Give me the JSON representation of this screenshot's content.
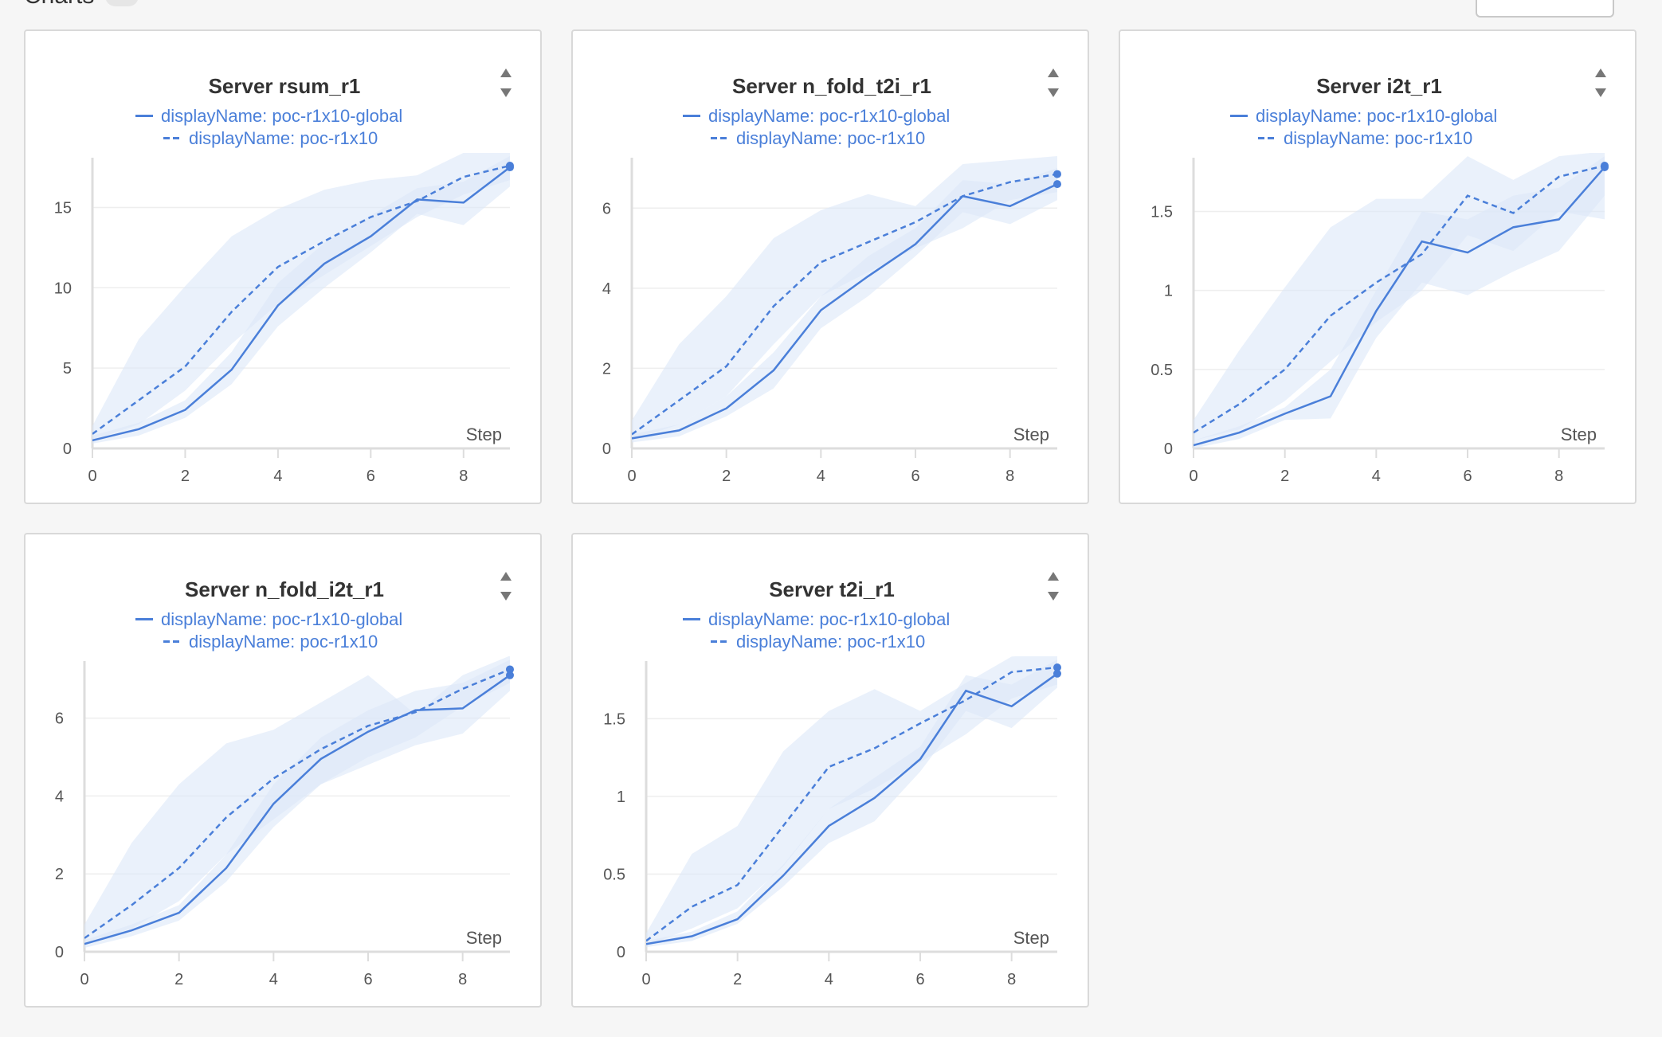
{
  "header": {
    "section_title": "Charts"
  },
  "legend_labels": [
    "displayName: poc-r1x10-global",
    "displayName: poc-r1x10"
  ],
  "colors": {
    "series": "#4a7fd9",
    "band": "#dce7f9",
    "grid": "#eeeeee",
    "axis": "#dddddd"
  },
  "chart_data": [
    {
      "type": "line",
      "title": "Server rsum_r1",
      "xlabel": "Step",
      "ylabel": "",
      "x": [
        0,
        1,
        2,
        3,
        4,
        5,
        6,
        7,
        8,
        9
      ],
      "xlim": [
        0,
        9
      ],
      "ylim": [
        0,
        17.7
      ],
      "xticks": [
        0,
        2,
        4,
        6,
        8
      ],
      "yticks": [
        0,
        5,
        10,
        15
      ],
      "ytick_labels": [
        "0",
        "5",
        "10",
        "15"
      ],
      "series": [
        {
          "name": "displayName: poc-r1x10-global",
          "style": "solid",
          "values": [
            0.5,
            1.2,
            2.4,
            4.9,
            8.9,
            11.5,
            13.2,
            15.5,
            15.3,
            17.5
          ],
          "band_low": [
            0.3,
            0.8,
            1.9,
            4.0,
            7.6,
            10.0,
            12.2,
            14.6,
            13.9,
            16.3
          ],
          "band_high": [
            0.8,
            1.6,
            3.0,
            6.0,
            10.3,
            12.8,
            14.5,
            16.2,
            16.6,
            18.2
          ]
        },
        {
          "name": "displayName: poc-r1x10",
          "style": "dashed",
          "values": [
            0.9,
            3.0,
            5.1,
            8.5,
            11.3,
            12.9,
            14.4,
            15.4,
            16.9,
            17.6
          ],
          "band_low": [
            0.5,
            1.5,
            3.6,
            6.5,
            9.0,
            10.8,
            12.6,
            14.4,
            15.8,
            16.7
          ],
          "band_high": [
            1.4,
            6.8,
            10.1,
            13.2,
            14.9,
            16.1,
            16.7,
            17.0,
            18.4,
            18.5
          ]
        }
      ]
    },
    {
      "type": "line",
      "title": "Server n_fold_t2i_r1",
      "xlabel": "Step",
      "ylabel": "",
      "x": [
        0,
        1,
        2,
        3,
        4,
        5,
        6,
        7,
        8,
        9
      ],
      "xlim": [
        0,
        9
      ],
      "ylim": [
        0,
        7.1
      ],
      "xticks": [
        0,
        2,
        4,
        6,
        8
      ],
      "yticks": [
        0,
        2,
        4,
        6
      ],
      "ytick_labels": [
        "0",
        "2",
        "4",
        "6"
      ],
      "series": [
        {
          "name": "displayName: poc-r1x10-global",
          "style": "solid",
          "values": [
            0.25,
            0.45,
            1.0,
            1.95,
            3.45,
            4.3,
            5.1,
            6.3,
            6.05,
            6.6
          ],
          "band_low": [
            0.15,
            0.3,
            0.8,
            1.5,
            3.0,
            3.8,
            4.8,
            5.9,
            5.6,
            6.2
          ],
          "band_high": [
            0.35,
            0.6,
            1.3,
            2.4,
            3.8,
            4.8,
            5.5,
            6.7,
            6.6,
            7.0
          ]
        },
        {
          "name": "displayName: poc-r1x10",
          "style": "dashed",
          "values": [
            0.35,
            1.2,
            2.05,
            3.55,
            4.65,
            5.15,
            5.65,
            6.3,
            6.65,
            6.85
          ],
          "band_low": [
            0.2,
            0.6,
            1.3,
            2.6,
            3.8,
            4.4,
            5.0,
            5.5,
            6.2,
            6.4
          ],
          "band_high": [
            0.7,
            2.6,
            3.8,
            5.25,
            5.95,
            6.35,
            6.05,
            7.1,
            7.2,
            7.3
          ]
        }
      ]
    },
    {
      "type": "line",
      "title": "Server i2t_r1",
      "xlabel": "Step",
      "ylabel": "",
      "x": [
        0,
        1,
        2,
        3,
        4,
        5,
        6,
        7,
        8,
        9
      ],
      "xlim": [
        0,
        9
      ],
      "ylim": [
        0,
        1.8
      ],
      "xticks": [
        0,
        2,
        4,
        6,
        8
      ],
      "yticks": [
        0,
        0.5,
        1,
        1.5
      ],
      "ytick_labels": [
        "0",
        "0.5",
        "1",
        "1.5"
      ],
      "series": [
        {
          "name": "displayName: poc-r1x10-global",
          "style": "solid",
          "values": [
            0.02,
            0.1,
            0.22,
            0.33,
            0.87,
            1.31,
            1.24,
            1.4,
            1.45,
            1.78
          ],
          "band_low": [
            0.0,
            0.06,
            0.18,
            0.19,
            0.7,
            1.05,
            0.97,
            1.12,
            1.25,
            1.6
          ],
          "band_high": [
            0.05,
            0.14,
            0.26,
            0.5,
            1.0,
            1.5,
            1.45,
            1.6,
            1.65,
            1.85
          ]
        },
        {
          "name": "displayName: poc-r1x10",
          "style": "dashed",
          "values": [
            0.1,
            0.28,
            0.5,
            0.84,
            1.05,
            1.23,
            1.6,
            1.49,
            1.72,
            1.79
          ],
          "band_low": [
            0.05,
            0.12,
            0.3,
            0.55,
            0.8,
            1.0,
            1.35,
            1.25,
            1.5,
            1.45
          ],
          "band_high": [
            0.18,
            0.62,
            1.02,
            1.4,
            1.58,
            1.58,
            1.85,
            1.7,
            1.85,
            1.88
          ]
        }
      ]
    },
    {
      "type": "line",
      "title": "Server n_fold_i2t_r1",
      "xlabel": "Step",
      "ylabel": "",
      "x": [
        0,
        1,
        2,
        3,
        4,
        5,
        6,
        7,
        8,
        9
      ],
      "xlim": [
        0,
        9
      ],
      "ylim": [
        0,
        7.3
      ],
      "xticks": [
        0,
        2,
        4,
        6,
        8
      ],
      "yticks": [
        0,
        2,
        4,
        6
      ],
      "ytick_labels": [
        "0",
        "2",
        "4",
        "6"
      ],
      "series": [
        {
          "name": "displayName: poc-r1x10-global",
          "style": "solid",
          "values": [
            0.2,
            0.55,
            1.0,
            2.15,
            3.8,
            4.95,
            5.65,
            6.2,
            6.25,
            7.1
          ],
          "band_low": [
            0.1,
            0.4,
            0.8,
            1.8,
            3.2,
            4.3,
            4.8,
            5.3,
            5.6,
            6.7
          ],
          "band_high": [
            0.3,
            0.7,
            1.2,
            2.5,
            4.3,
            5.5,
            6.2,
            6.7,
            6.9,
            7.5
          ]
        },
        {
          "name": "displayName: poc-r1x10",
          "style": "dashed",
          "values": [
            0.35,
            1.2,
            2.15,
            3.45,
            4.45,
            5.2,
            5.8,
            6.15,
            6.75,
            7.25
          ],
          "band_low": [
            0.2,
            0.6,
            1.3,
            2.5,
            3.4,
            4.3,
            5.0,
            5.5,
            6.3,
            6.9
          ],
          "band_high": [
            0.7,
            2.8,
            4.3,
            5.35,
            5.7,
            6.4,
            7.1,
            6.1,
            7.1,
            7.6
          ]
        }
      ]
    },
    {
      "type": "line",
      "title": "Server t2i_r1",
      "xlabel": "Step",
      "ylabel": "",
      "x": [
        0,
        1,
        2,
        3,
        4,
        5,
        6,
        7,
        8,
        9
      ],
      "xlim": [
        0,
        9
      ],
      "ylim": [
        0,
        1.83
      ],
      "xticks": [
        0,
        2,
        4,
        6,
        8
      ],
      "yticks": [
        0,
        0.5,
        1,
        1.5
      ],
      "ytick_labels": [
        "0",
        "0.5",
        "1",
        "1.5"
      ],
      "series": [
        {
          "name": "displayName: poc-r1x10-global",
          "style": "solid",
          "values": [
            0.05,
            0.1,
            0.21,
            0.49,
            0.81,
            0.99,
            1.24,
            1.68,
            1.58,
            1.79
          ],
          "band_low": [
            0.03,
            0.07,
            0.18,
            0.42,
            0.7,
            0.84,
            1.16,
            1.55,
            1.44,
            1.7
          ],
          "band_high": [
            0.07,
            0.13,
            0.26,
            0.56,
            0.92,
            1.12,
            1.32,
            1.78,
            1.72,
            1.88
          ]
        },
        {
          "name": "displayName: poc-r1x10",
          "style": "dashed",
          "values": [
            0.07,
            0.29,
            0.43,
            0.81,
            1.19,
            1.31,
            1.47,
            1.62,
            1.8,
            1.83
          ],
          "band_low": [
            0.04,
            0.15,
            0.28,
            0.55,
            0.92,
            1.05,
            1.22,
            1.4,
            1.63,
            1.72
          ],
          "band_high": [
            0.12,
            0.63,
            0.81,
            1.29,
            1.55,
            1.69,
            1.55,
            1.73,
            1.9,
            1.92
          ]
        }
      ]
    }
  ]
}
